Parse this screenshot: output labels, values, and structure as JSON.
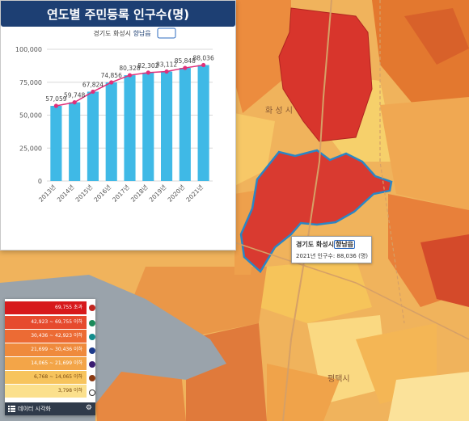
{
  "chart": {
    "title": "연도별 주민등록 인구수(명)",
    "subtitle_prefix": "경기도 화성시 ",
    "subtitle_highlight": "향남읍"
  },
  "chart_data": {
    "type": "bar",
    "categories": [
      "2013년",
      "2014년",
      "2015년",
      "2016년",
      "2017년",
      "2018년",
      "2019년",
      "2020년",
      "2021년"
    ],
    "series": [
      {
        "values": [
          57059,
          59748,
          67824,
          74856,
          80328,
          82302,
          83112,
          85848,
          88036
        ]
      }
    ],
    "value_labels": [
      "57,059",
      "59,748",
      "67,824",
      "74,856",
      "80,328",
      "82,302",
      "83,112",
      "85,848",
      "88,036"
    ],
    "yticks": [
      "100,000",
      "75,000",
      "50,000",
      "25,000",
      "0"
    ],
    "ylim": [
      0,
      100000
    ],
    "bar_color": "#3fb9e6",
    "line_color": "#e0307a",
    "grid": true,
    "legend": "none"
  },
  "map": {
    "labels": {
      "hwaseong": "화 성 시",
      "pyeongtaek": "평택시"
    }
  },
  "tooltip": {
    "title_prefix": "경기도 화성시",
    "title_highlight": "향남읍",
    "row_label": "2021년 인구수",
    "row_value": ": 88,036 (명)"
  },
  "legend": {
    "items": [
      {
        "label": "69,755 초과",
        "color": "#d7191c"
      },
      {
        "label": "42,923 ~ 69,755 이하",
        "color": "#e64a2e"
      },
      {
        "label": "30,436 ~ 42,923 이하",
        "color": "#ec6b34"
      },
      {
        "label": "21,699 ~ 30,436 이하",
        "color": "#ef8a3c"
      },
      {
        "label": "14,065 ~ 21,699 이하",
        "color": "#f3a548"
      },
      {
        "label": "6,768 ~ 14,065 이하",
        "color": "#f7c45d"
      },
      {
        "label": "3,798 이하",
        "color": "#fbe08d"
      }
    ],
    "dot_colors": [
      "#c0261f",
      "#1b8a5a",
      "#138c8c",
      "#1c3a8a",
      "#3a1c70",
      "#8a3a12"
    ],
    "footer_label": "데이터 시각화"
  }
}
